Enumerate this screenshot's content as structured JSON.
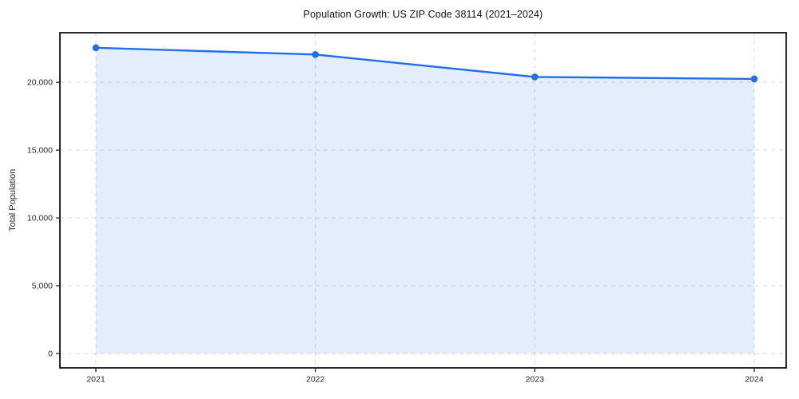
{
  "chart_data": {
    "type": "line",
    "title": "Population Growth: US ZIP Code 38114 (2021–2024)",
    "xlabel": "",
    "ylabel": "Total Population",
    "x": [
      "2021",
      "2022",
      "2023",
      "2024"
    ],
    "series": [
      {
        "name": "Total Population",
        "values": [
          22550,
          22050,
          20400,
          20250
        ]
      }
    ],
    "yticks": [
      0,
      5000,
      10000,
      15000,
      20000
    ],
    "ytick_labels": [
      "0",
      "5,000",
      "10,000",
      "15,000",
      "20,000"
    ],
    "ylim": [
      -1060,
      23660
    ],
    "grid": true,
    "grid_style": "dashed",
    "legend": "none",
    "area_fill": true,
    "fill_to": 0,
    "colors": {
      "line": "#1f6fe8",
      "marker": "#1f6fe8",
      "fill": "rgba(31, 111, 232, 0.12)",
      "grid": "#d9d9d9",
      "spine": "#111111",
      "tick": "#222222",
      "text": "#262626",
      "title": "#111111",
      "background": "#ffffff"
    }
  }
}
